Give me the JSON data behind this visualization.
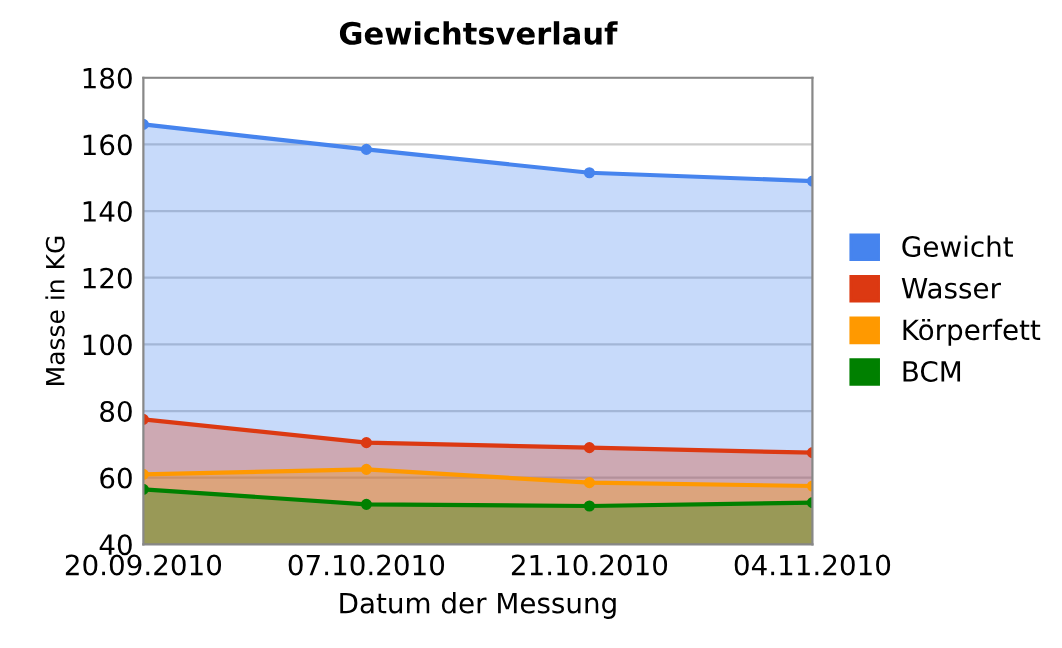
{
  "chart_data": {
    "type": "area",
    "title": "Gewichtsverlauf",
    "xlabel": "Datum der Messung",
    "ylabel": "Masse in KG",
    "categories": [
      "20.09.2010",
      "07.10.2010",
      "21.10.2010",
      "04.11.2010"
    ],
    "series": [
      {
        "name": "Gewicht",
        "color": "#4684ee",
        "values": [
          166,
          158.5,
          151.5,
          149
        ]
      },
      {
        "name": "Wasser",
        "color": "#dc3912",
        "values": [
          77.5,
          70.5,
          69,
          67.5
        ]
      },
      {
        "name": "Körperfett",
        "color": "#ff9900",
        "values": [
          61,
          62.5,
          58.5,
          57.5
        ]
      },
      {
        "name": "BCM",
        "color": "#008000",
        "values": [
          56.5,
          52,
          51.5,
          52.5
        ]
      }
    ],
    "ylim": [
      40,
      180
    ],
    "yticks": [
      40,
      60,
      80,
      100,
      120,
      140,
      160,
      180
    ],
    "grid": "y",
    "legend": "right",
    "marker": "circle",
    "line_style": "solid"
  }
}
